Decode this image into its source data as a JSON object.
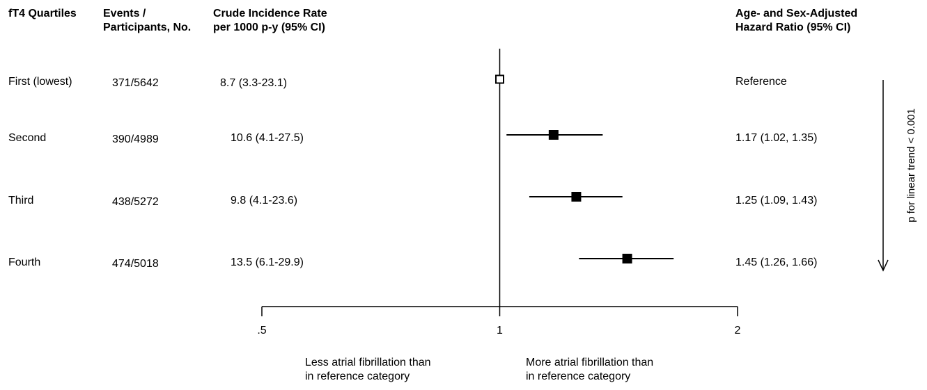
{
  "headers": {
    "quartiles": "fT4 Quartiles",
    "events": "Events /\nParticipants, No.",
    "crude": "Crude Incidence Rate\nper 1000 p-y (95% CI)",
    "hr": "Age- and Sex-Adjusted\nHazard Ratio (95% CI)"
  },
  "rows": [
    {
      "quartile": "First (lowest)",
      "events": "371/5642",
      "crude": "8.7 (3.3-23.1)",
      "hr_text": "Reference"
    },
    {
      "quartile": "Second",
      "events": "390/4989",
      "crude": "10.6 (4.1-27.5)",
      "hr_text": "1.17 (1.02, 1.35)"
    },
    {
      "quartile": "Third",
      "events": "438/5272",
      "crude": "9.8 (4.1-23.6)",
      "hr_text": "1.25 (1.09, 1.43)"
    },
    {
      "quartile": "Fourth",
      "events": "474/5018",
      "crude": "13.5 (6.1-29.9)",
      "hr_text": "1.45 (1.26, 1.66)"
    }
  ],
  "chart_data": {
    "type": "forest",
    "scale": "log",
    "xlim": [
      0.5,
      2
    ],
    "reference_line": 1,
    "ticks": [
      {
        "value": 0.5,
        "label": ".5"
      },
      {
        "value": 1,
        "label": "1"
      },
      {
        "value": 2,
        "label": "2"
      }
    ],
    "categories": [
      "First (lowest)",
      "Second",
      "Third",
      "Fourth"
    ],
    "points": [
      {
        "hr": 1.0,
        "lower": null,
        "upper": null,
        "marker": "hollow"
      },
      {
        "hr": 1.17,
        "lower": 1.02,
        "upper": 1.35,
        "marker": "filled"
      },
      {
        "hr": 1.25,
        "lower": 1.09,
        "upper": 1.43,
        "marker": "filled"
      },
      {
        "hr": 1.45,
        "lower": 1.26,
        "upper": 1.66,
        "marker": "filled"
      }
    ],
    "left_annotation": "Less atrial fibrillation than\nin reference category",
    "right_annotation": "More atrial fibrillation than\nin reference category",
    "trend_label": "p for linear trend < 0.001"
  }
}
